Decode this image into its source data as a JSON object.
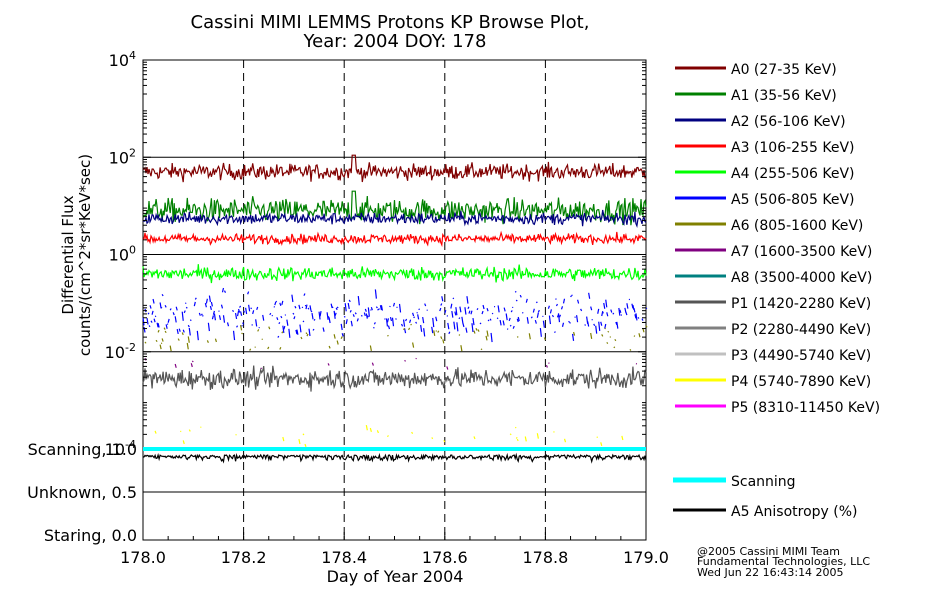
{
  "title_line1": "Cassini MIMI LEMMS Protons KP Browse Plot,",
  "title_line2": "Year: 2004 DOY: 178",
  "credit": {
    "line1": "@2005 Cassini MIMI Team",
    "line2": "Fundamental Technologies, LLC",
    "line3": "Wed Jun 22 16:43:14 2005"
  },
  "chart_data": [
    {
      "type": "line",
      "scale": "log",
      "ylabel_line1": "Differential Flux",
      "ylabel_line2": "counts/(cm^2*sr*KeV*sec)",
      "ylim": [
        0.0001,
        10000
      ],
      "y_ticks": [
        {
          "value": 10000,
          "base": "10",
          "exp": "4"
        },
        {
          "value": 100,
          "base": "10",
          "exp": "2"
        },
        {
          "value": 1,
          "base": "10",
          "exp": "0"
        },
        {
          "value": 0.01,
          "base": "10",
          "exp": "-2"
        },
        {
          "value": 0.0001,
          "base": "10",
          "exp": "-4"
        }
      ],
      "xlim": [
        178.0,
        179.0
      ],
      "dashed_gridlines_x": [
        178.2,
        178.4,
        178.6,
        178.8
      ],
      "series": [
        {
          "name": "A0 (27-35 KeV)",
          "color": "#800000",
          "level": 50,
          "noise": 0.08,
          "fill": 1.0,
          "spike": {
            "x": 178.42,
            "v": 110
          }
        },
        {
          "name": "A1 (35-56 KeV)",
          "color": "#008000",
          "level": 8,
          "noise": 0.12,
          "fill": 1.0,
          "spike": {
            "x": 178.42,
            "v": 20
          }
        },
        {
          "name": "A2 (56-106 KeV)",
          "color": "#000080",
          "level": 5.5,
          "noise": 0.06,
          "fill": 1.0
        },
        {
          "name": "A3 (106-255 KeV)",
          "color": "#ff0000",
          "level": 2.1,
          "noise": 0.05,
          "fill": 1.0
        },
        {
          "name": "A4 (255-506 KeV)",
          "color": "#00ff00",
          "level": 0.4,
          "noise": 0.07,
          "fill": 1.0
        },
        {
          "name": "A5 (506-805 KeV)",
          "color": "#0000ff",
          "level": 0.06,
          "noise": 0.2,
          "fill": 0.6
        },
        {
          "name": "A6 (805-1600 KeV)",
          "color": "#808000",
          "level": 0.02,
          "noise": 0.12,
          "fill": 0.12
        },
        {
          "name": "A7 (1600-3500 KeV)",
          "color": "#800080",
          "level": 0.006,
          "noise": 0.05,
          "fill": 0.02
        },
        {
          "name": "A8 (3500-4000 KeV)",
          "color": "#008080",
          "level": null,
          "noise": 0,
          "fill": 0
        },
        {
          "name": "P1 (1420-2280 KeV)",
          "color": "#555555",
          "level": 0.0028,
          "noise": 0.1,
          "fill": 1.0
        },
        {
          "name": "P2 (2280-4490 KeV)",
          "color": "#808080",
          "level": null,
          "noise": 0,
          "fill": 0
        },
        {
          "name": "P3 (4490-5740 KeV)",
          "color": "#c0c0c0",
          "level": null,
          "noise": 0,
          "fill": 0
        },
        {
          "name": "P4 (5740-7890 KeV)",
          "color": "#ffff00",
          "level": 0.0002,
          "noise": 0.1,
          "fill": 0.05
        },
        {
          "name": "P5 (8310-11450 KeV)",
          "color": "#ff00ff",
          "level": null,
          "noise": 0,
          "fill": 0
        }
      ]
    },
    {
      "type": "line",
      "xlabel": "Day of Year 2004",
      "x_ticks": [
        "178.0",
        "178.2",
        "178.4",
        "178.6",
        "178.8",
        "179.0"
      ],
      "xlim": [
        178.0,
        179.0
      ],
      "ylim": [
        0.0,
        1.0
      ],
      "y_ticks": [
        {
          "value": 1.0,
          "label": "Scanning, 1.0"
        },
        {
          "value": 0.5,
          "label": "Unknown, 0.5"
        },
        {
          "value": 0.0,
          "label": "Staring, 0.0"
        }
      ],
      "series": [
        {
          "name": "Scanning",
          "color": "#00ffff",
          "value": 1.0
        },
        {
          "name": "A5 Anisotropy (%)",
          "color": "#000000",
          "value": 0.93,
          "noise": 0.03
        }
      ]
    }
  ]
}
